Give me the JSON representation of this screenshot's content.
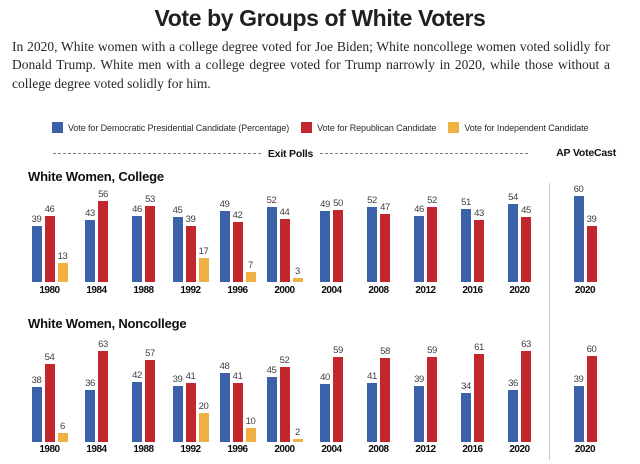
{
  "title": "Vote by Groups of White Voters",
  "subtitle": "In 2020, White women with a college degree voted for Joe Biden; White noncollege women voted solidly for Donald Trump. White men with a college degree voted for Trump narrowly in 2020, while those without a college degree voted solidly for him.",
  "colors": {
    "dem": "#3b61a8",
    "rep": "#c1272d",
    "ind": "#f0b143",
    "divider_line": "#7d7d7d",
    "separator_line": "#c9c9c9"
  },
  "legend": [
    {
      "key": "dem",
      "label": "Vote for Democratic Presidential Candidate (Percentage)"
    },
    {
      "key": "rep",
      "label": "Vote for Republican Candidate"
    },
    {
      "key": "ind",
      "label": "Vote for Independent Candidate"
    }
  ],
  "sections": {
    "exit_polls_label": "Exit Polls",
    "ap_votecast_label": "AP VoteCast"
  },
  "chart_data": [
    {
      "type": "bar",
      "panel_title": "White Women, College",
      "ylim": [
        0,
        63
      ],
      "series_names": [
        "Democratic",
        "Republican",
        "Independent"
      ],
      "exit_groups": [
        {
          "year": "1980",
          "dem": 39,
          "rep": 46,
          "ind": 13
        },
        {
          "year": "1984",
          "dem": 43,
          "rep": 56
        },
        {
          "year": "1988",
          "dem": 46,
          "rep": 53
        },
        {
          "year": "1992",
          "dem": 45,
          "rep": 39,
          "ind": 17
        },
        {
          "year": "1996",
          "dem": 49,
          "rep": 42,
          "ind": 7
        },
        {
          "year": "2000",
          "dem": 52,
          "rep": 44,
          "ind": 3
        },
        {
          "year": "2004",
          "dem": 49,
          "rep": 50
        },
        {
          "year": "2008",
          "dem": 52,
          "rep": 47
        },
        {
          "year": "2012",
          "dem": 46,
          "rep": 52
        },
        {
          "year": "2016",
          "dem": 51,
          "rep": 43
        },
        {
          "year": "2020",
          "dem": 54,
          "rep": 45
        }
      ],
      "ap_group": {
        "year": "2020",
        "dem": 60,
        "rep": 39
      }
    },
    {
      "type": "bar",
      "panel_title": "White Women, Noncollege",
      "ylim": [
        0,
        63
      ],
      "series_names": [
        "Democratic",
        "Republican",
        "Independent"
      ],
      "exit_groups": [
        {
          "year": "1980",
          "dem": 38,
          "rep": 54,
          "ind": 6
        },
        {
          "year": "1984",
          "dem": 36,
          "rep": 63
        },
        {
          "year": "1988",
          "dem": 42,
          "rep": 57
        },
        {
          "year": "1992",
          "dem": 39,
          "rep": 41,
          "ind": 20
        },
        {
          "year": "1996",
          "dem": 48,
          "rep": 41,
          "ind": 10
        },
        {
          "year": "2000",
          "dem": 45,
          "rep": 52,
          "ind": 2
        },
        {
          "year": "2004",
          "dem": 40,
          "rep": 59
        },
        {
          "year": "2008",
          "dem": 41,
          "rep": 58
        },
        {
          "year": "2012",
          "dem": 39,
          "rep": 59
        },
        {
          "year": "2016",
          "dem": 34,
          "rep": 61
        },
        {
          "year": "2020",
          "dem": 36,
          "rep": 63
        }
      ],
      "ap_group": {
        "year": "2020",
        "dem": 39,
        "rep": 60
      }
    }
  ]
}
